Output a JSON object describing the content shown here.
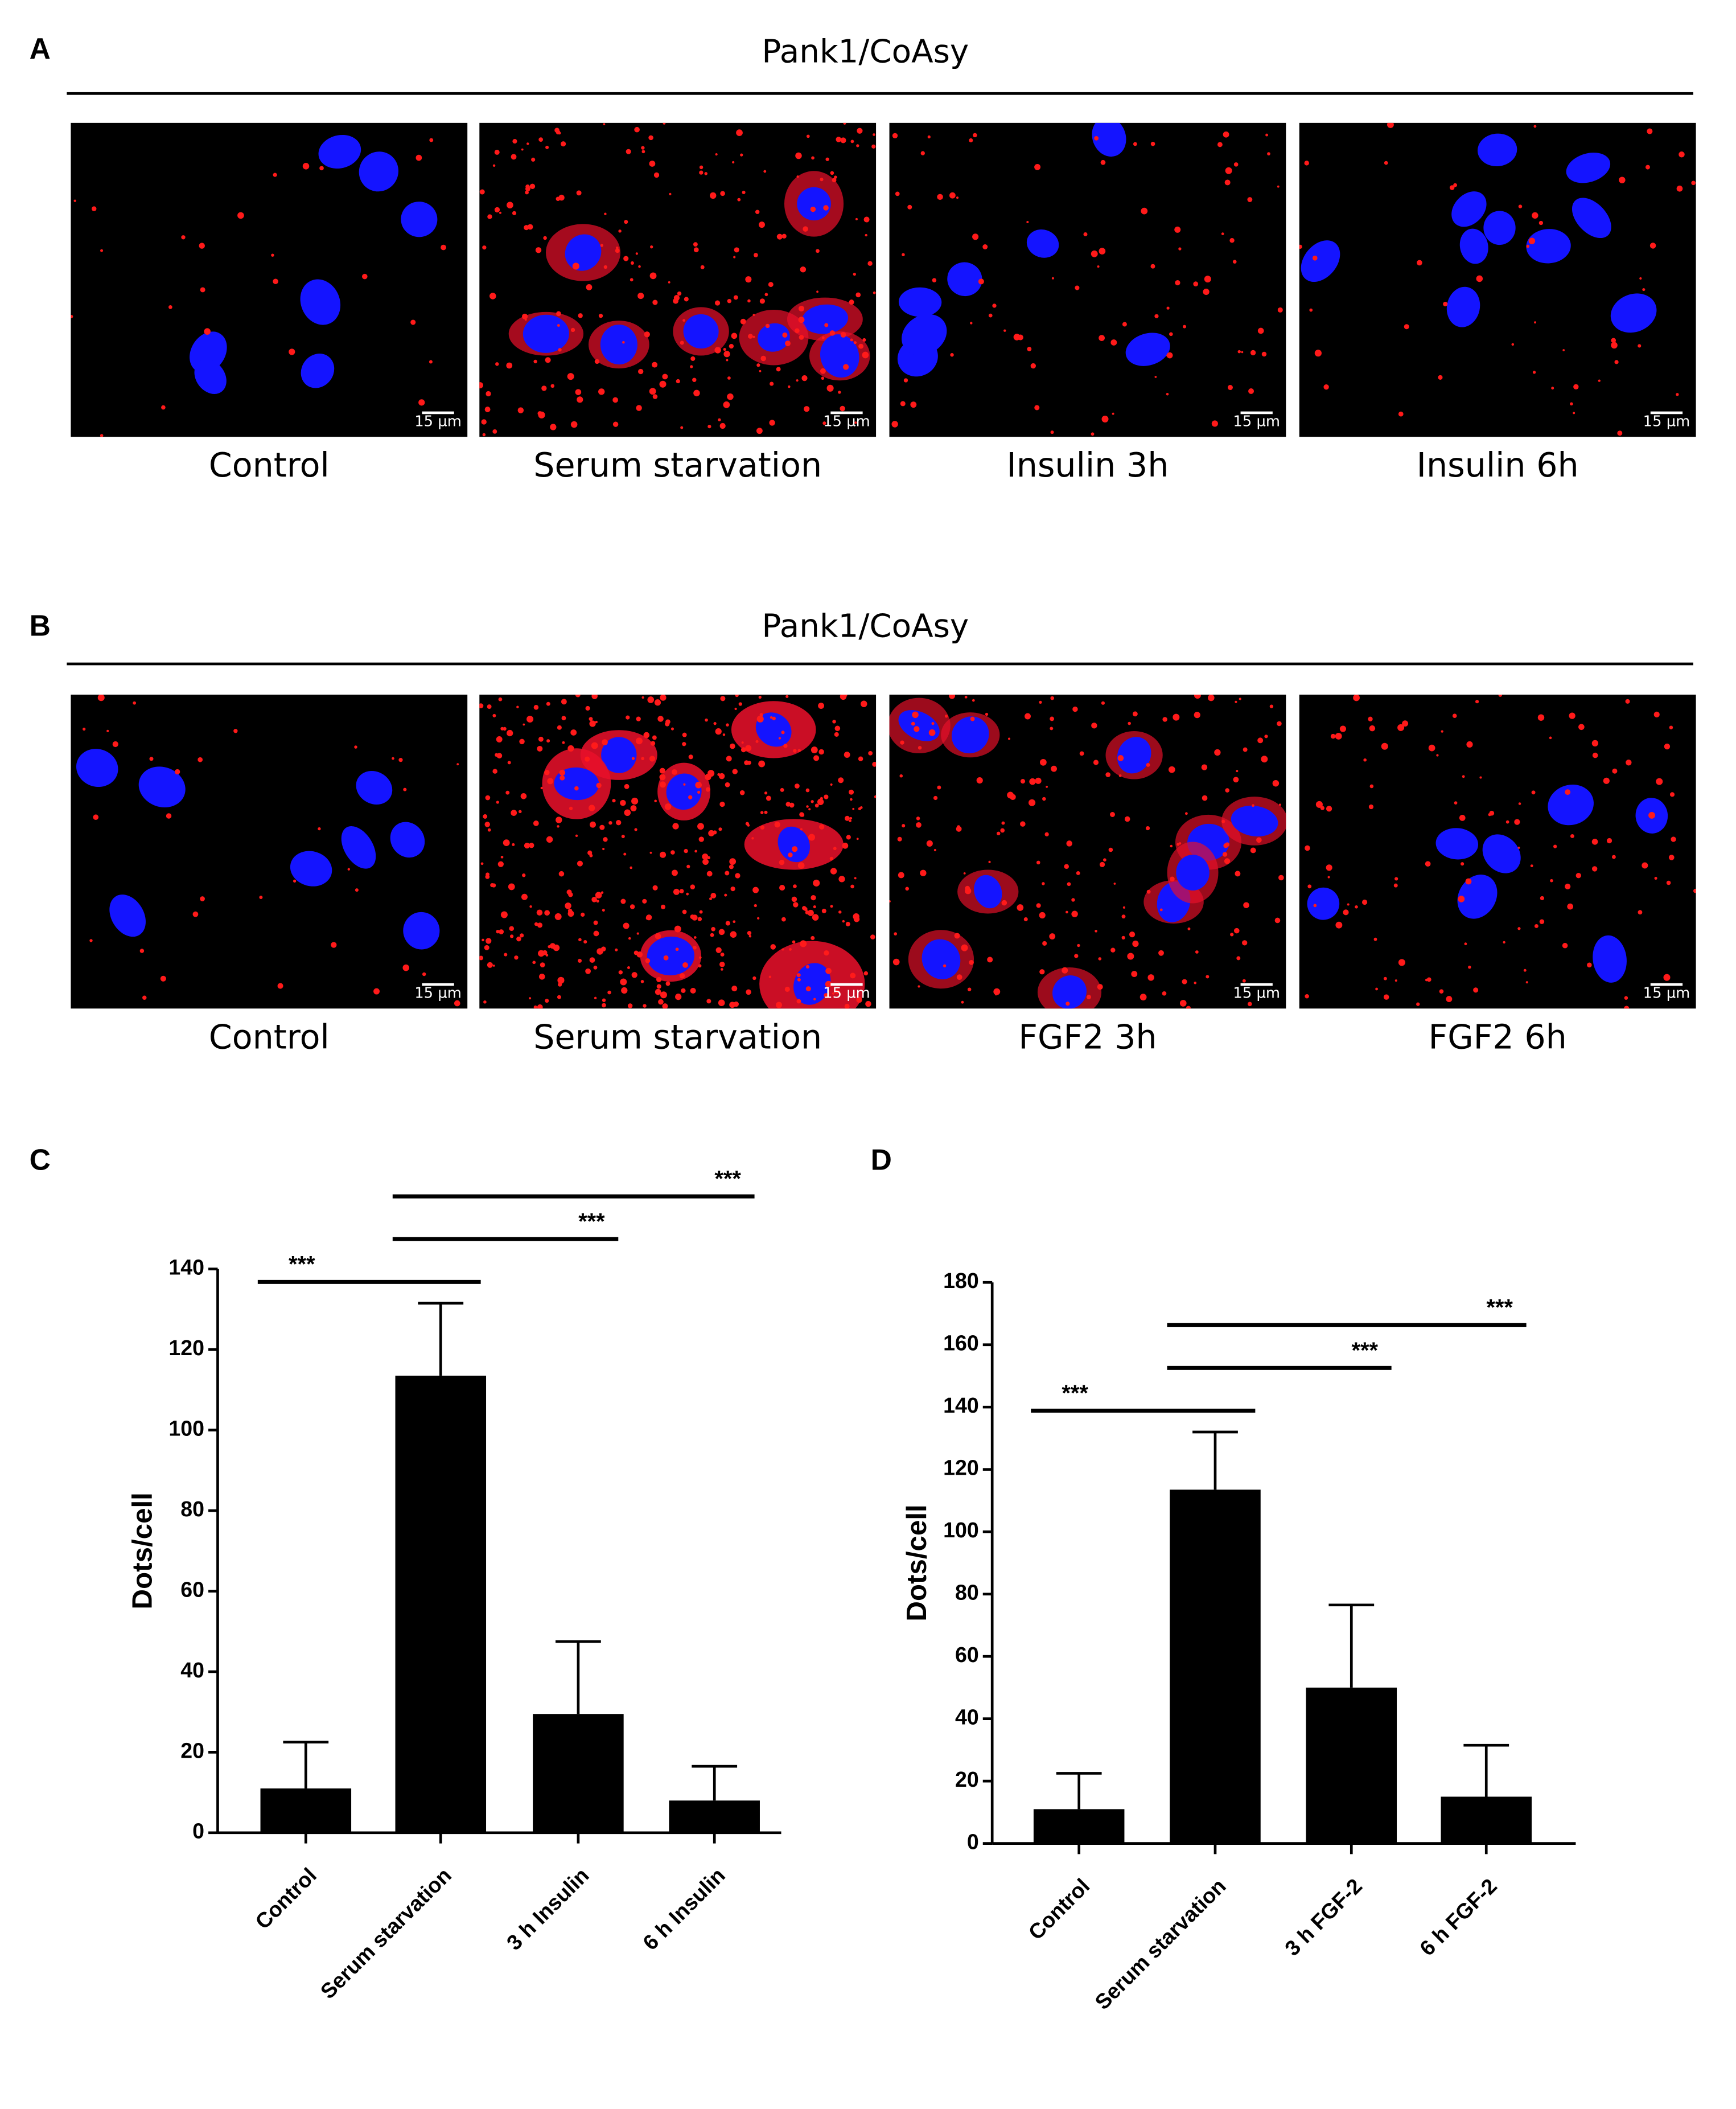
{
  "panels": [
    {
      "letter": "A",
      "title": "Pank1/CoAsy",
      "images": [
        {
          "label": "Control"
        },
        {
          "label": "Serum starvation"
        },
        {
          "label": "Insulin 3h"
        },
        {
          "label": "Insulin 6h"
        }
      ]
    },
    {
      "letter": "B",
      "title": "Pank1/CoAsy",
      "images": [
        {
          "label": "Control"
        },
        {
          "label": "Serum starvation"
        },
        {
          "label": "FGF2 3h"
        },
        {
          "label": "FGF2 6h"
        }
      ]
    }
  ],
  "scale_bar": "15 µm",
  "chart_data": [
    {
      "type": "bar",
      "panel_label": "C",
      "y_label": "Dots/cell",
      "categories": [
        "Control",
        "Serum starvation",
        "3 h Insulin",
        "6 h Insulin"
      ],
      "values": [
        11,
        113.5,
        29.5,
        8
      ],
      "errors": [
        11.5,
        18,
        18,
        8.5
      ],
      "color": "#000000",
      "ylim": [
        0,
        140
      ],
      "yticks": [
        0,
        20,
        40,
        60,
        80,
        100,
        120,
        140
      ],
      "significance": [
        {
          "between": [
            0,
            1
          ],
          "label": "***"
        },
        {
          "between": [
            1,
            2
          ],
          "label": "***"
        },
        {
          "between": [
            1,
            3
          ],
          "label": "***"
        }
      ]
    },
    {
      "type": "bar",
      "panel_label": "D",
      "y_label": "Dots/cell",
      "categories": [
        "Control",
        "Serum starvation",
        "3 h FGF-2",
        "6 h FGF-2"
      ],
      "values": [
        11,
        113.5,
        50,
        15
      ],
      "errors": [
        11.5,
        18.5,
        26.5,
        16.5
      ],
      "color": "#000000",
      "ylim": [
        0,
        180
      ],
      "yticks": [
        0,
        20,
        40,
        60,
        80,
        100,
        120,
        140,
        160,
        180
      ],
      "significance": [
        {
          "between": [
            0,
            1
          ],
          "label": "***"
        },
        {
          "between": [
            1,
            2
          ],
          "label": "***"
        },
        {
          "between": [
            1,
            3
          ],
          "label": "***"
        }
      ]
    }
  ]
}
